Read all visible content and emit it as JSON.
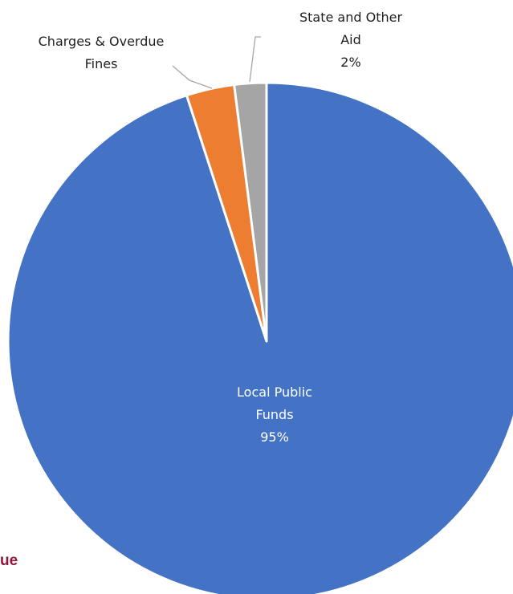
{
  "chart_data": {
    "type": "pie",
    "title": "",
    "slices": [
      {
        "name": "Local Public Funds",
        "value": 95,
        "color": "#4472c4",
        "label_lines": [
          "Local Public",
          "Funds",
          "95%"
        ]
      },
      {
        "name": "Charges & Overdue Fines",
        "value": 3,
        "color": "#ed7d31",
        "label_lines": [
          "Charges & Overdue",
          "Fines"
        ]
      },
      {
        "name": "State and Other Aid",
        "value": 2,
        "color": "#a5a5a5",
        "label_lines": [
          "State and Other",
          "Aid",
          "2%"
        ]
      }
    ],
    "start_angle_deg": 0,
    "direction": "clockwise",
    "slice_border_color": "#ffffff",
    "legend": "none"
  },
  "page": {
    "cutoff_text": "ue",
    "cutoff_text_color": "#8b1a3a"
  }
}
